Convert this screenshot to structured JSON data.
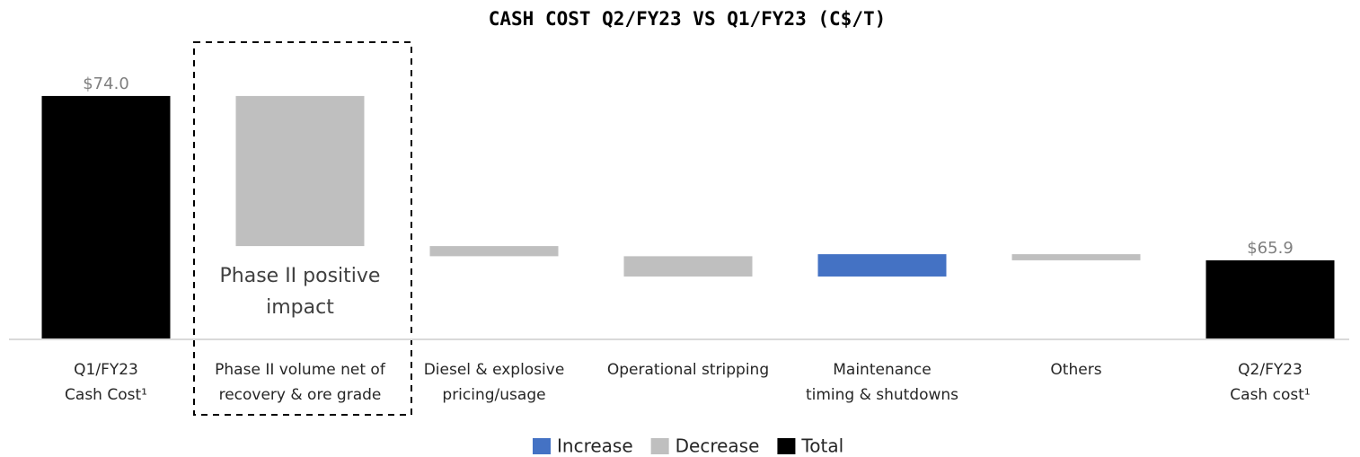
{
  "chart_data": {
    "type": "waterfall",
    "title": "CASH COST Q2/FY23 VS Q1/FY23 (C$/T)",
    "categories": [
      [
        "Q1/FY23",
        "Cash Cost¹"
      ],
      [
        "Phase II volume net of",
        "recovery & ore grade"
      ],
      [
        "Diesel & explosive",
        "pricing/usage"
      ],
      [
        "Operational stripping"
      ],
      [
        "Maintenance",
        "timing & shutdowns"
      ],
      [
        "Others"
      ],
      [
        "Q2/FY23",
        "Cash cost¹"
      ]
    ],
    "values": [
      74.0,
      -7.4,
      -0.5,
      -1.0,
      1.1,
      -0.3,
      65.9
    ],
    "value_labels": [
      "$74.0",
      null,
      null,
      null,
      null,
      null,
      "$65.9"
    ],
    "measure": [
      "total",
      "relative",
      "relative",
      "relative",
      "relative",
      "relative",
      "total"
    ],
    "legend": [
      {
        "name": "Increase",
        "color": "#4472c4"
      },
      {
        "name": "Decrease",
        "color": "#bfbfbf"
      },
      {
        "name": "Total",
        "color": "#000000"
      }
    ],
    "ylim": [
      62,
      76
    ],
    "annotation": {
      "category": 1,
      "lines": [
        "Phase II positive",
        "impact"
      ]
    }
  }
}
